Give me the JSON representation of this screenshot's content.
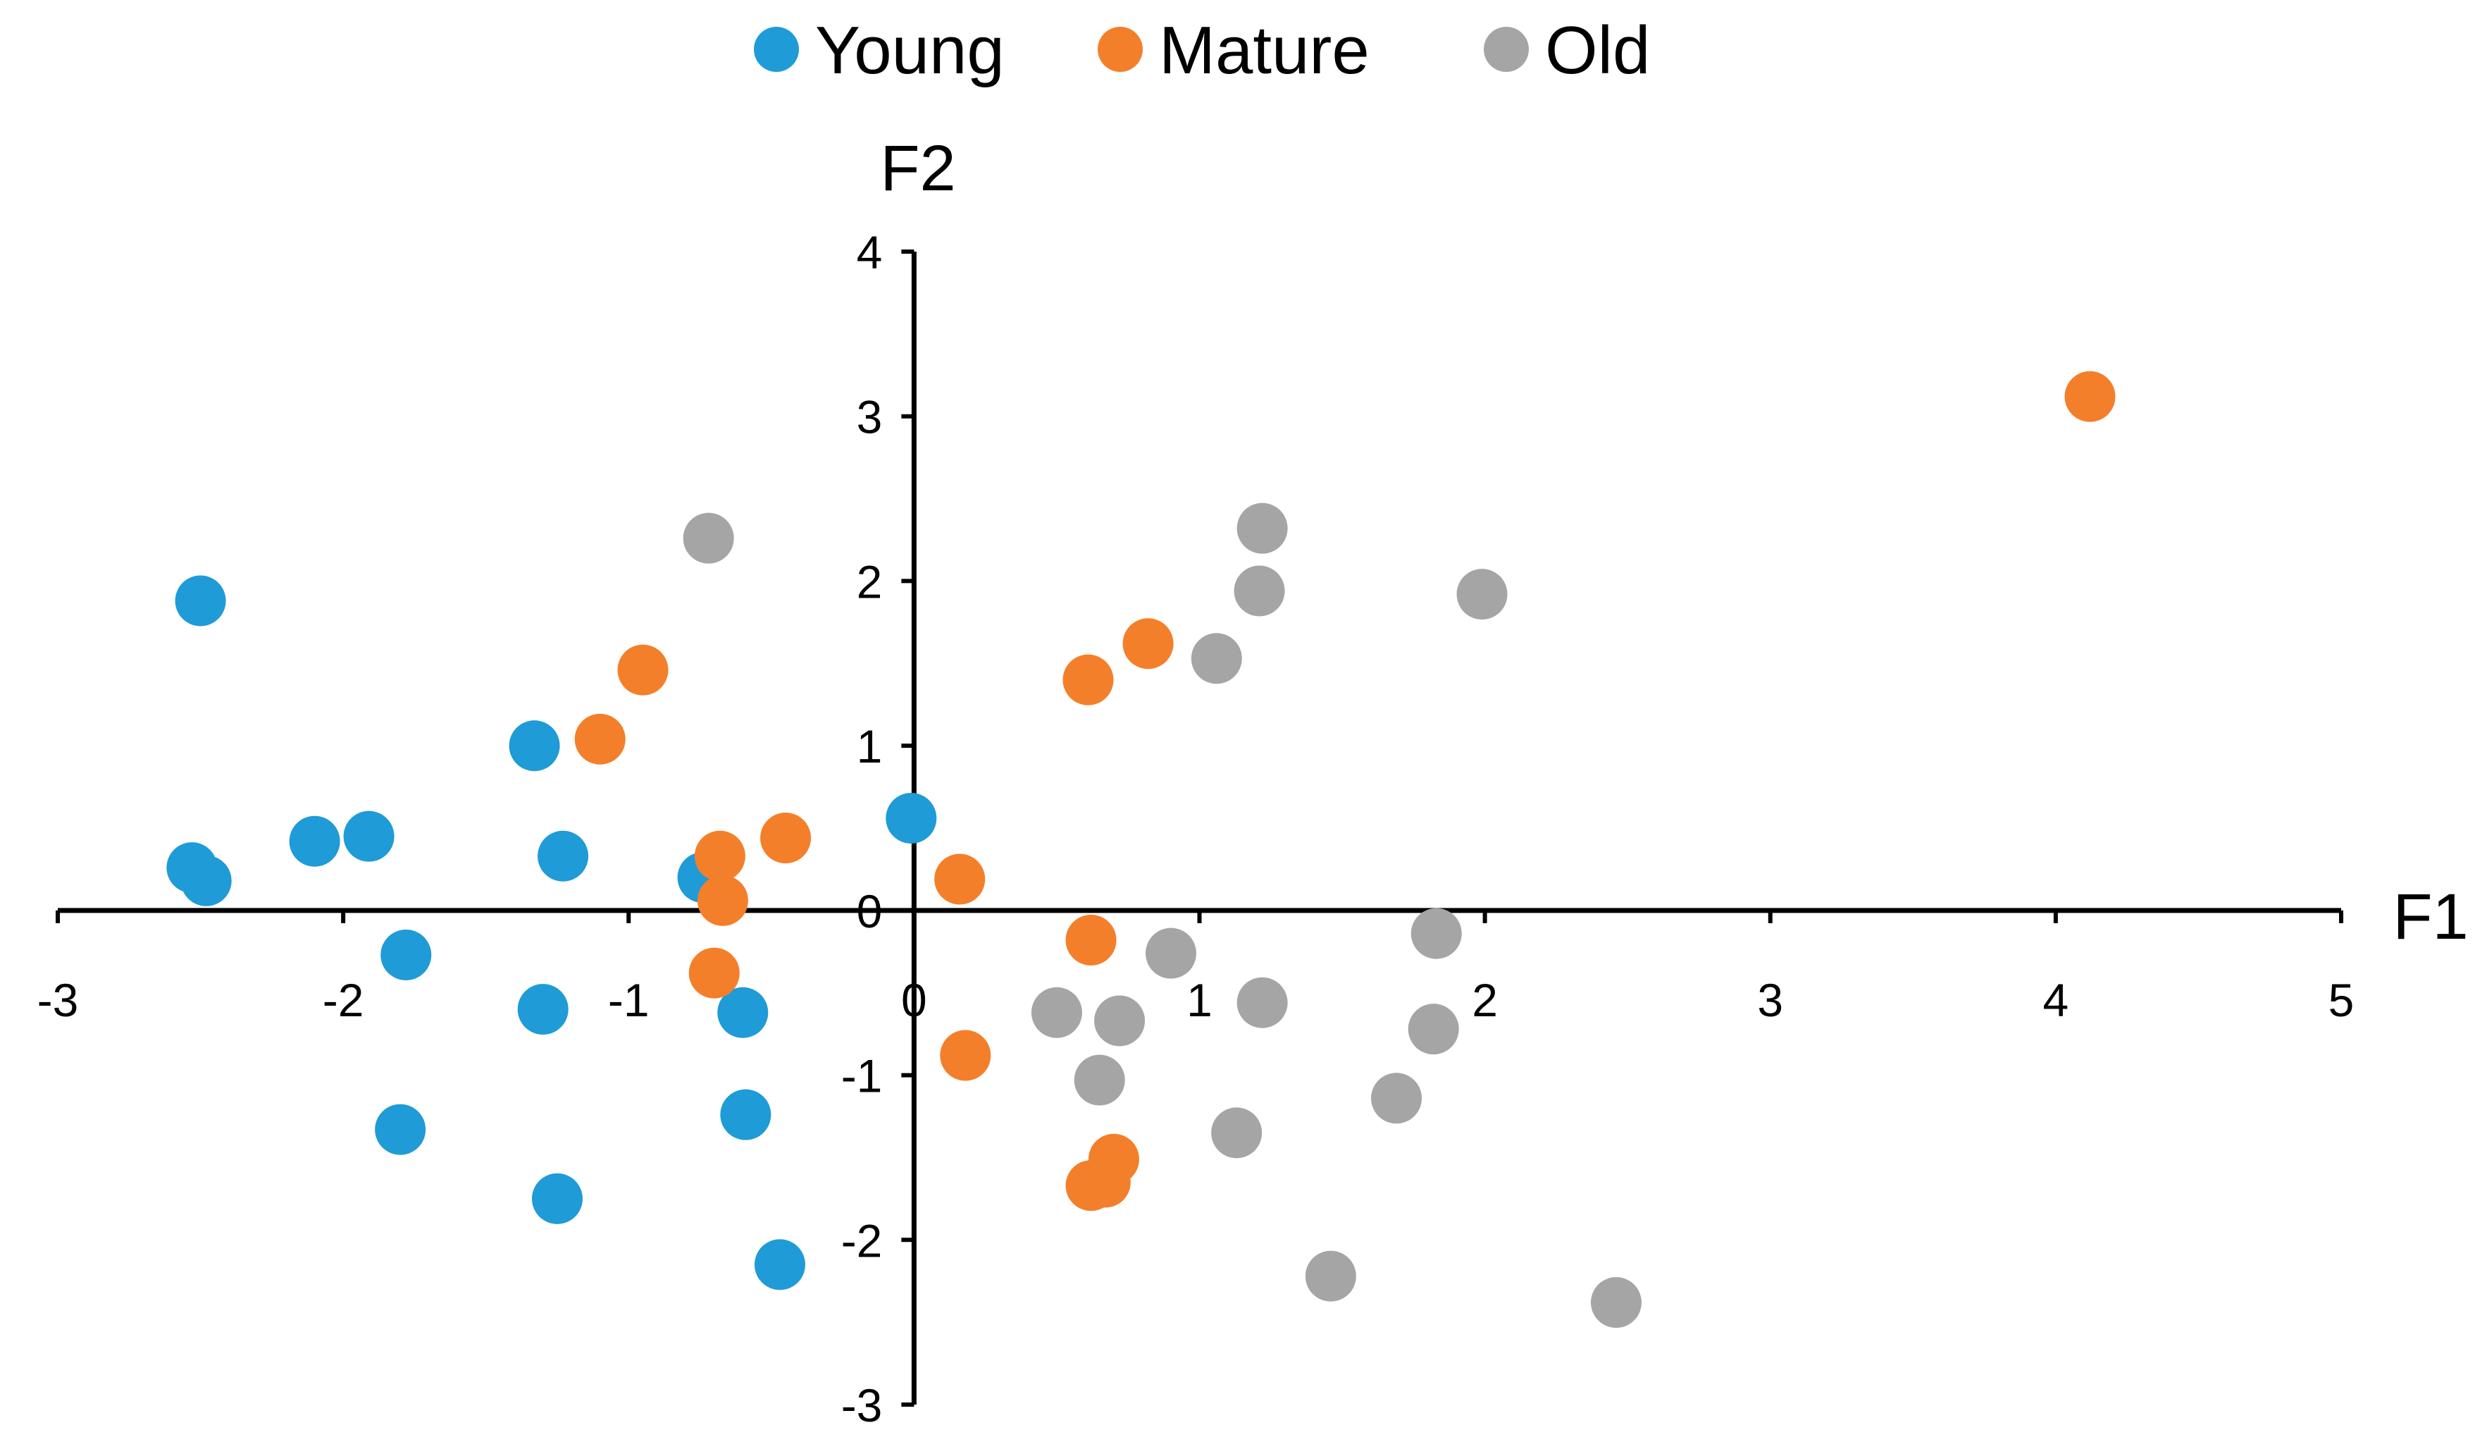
{
  "chart_data": {
    "type": "scatter",
    "xlabel": "F1",
    "ylabel": "F2",
    "xlim": [
      -3,
      5
    ],
    "ylim": [
      -3,
      4
    ],
    "xticks": [
      -3,
      -2,
      -1,
      0,
      1,
      2,
      3,
      4,
      5
    ],
    "yticks": [
      -3,
      -2,
      -1,
      0,
      1,
      2,
      3,
      4
    ],
    "legend": "top-center",
    "grid": false,
    "series": [
      {
        "name": "Young",
        "color": "#1f9bd7",
        "points": [
          [
            -2.5,
            1.88
          ],
          [
            -1.33,
            1.0
          ],
          [
            -2.1,
            0.42
          ],
          [
            -1.91,
            0.45
          ],
          [
            -1.23,
            0.33
          ],
          [
            -2.53,
            0.26
          ],
          [
            -2.48,
            0.18
          ],
          [
            -0.74,
            0.2
          ],
          [
            -0.01,
            0.56
          ],
          [
            -1.78,
            -0.27
          ],
          [
            -1.3,
            -0.6
          ],
          [
            -0.6,
            -0.62
          ],
          [
            -1.8,
            -1.33
          ],
          [
            -0.59,
            -1.24
          ],
          [
            -1.25,
            -1.75
          ],
          [
            -0.47,
            -2.15
          ]
        ]
      },
      {
        "name": "Mature",
        "color": "#f47f2a",
        "points": [
          [
            4.12,
            3.12
          ],
          [
            0.82,
            1.62
          ],
          [
            0.61,
            1.4
          ],
          [
            -0.95,
            1.46
          ],
          [
            -1.1,
            1.04
          ],
          [
            -0.45,
            0.44
          ],
          [
            -0.68,
            0.33
          ],
          [
            -0.67,
            0.06
          ],
          [
            -0.7,
            -0.38
          ],
          [
            0.16,
            0.19
          ],
          [
            0.62,
            -0.18
          ],
          [
            0.18,
            -0.88
          ],
          [
            0.7,
            -1.51
          ],
          [
            0.62,
            -1.67
          ],
          [
            0.67,
            -1.65
          ]
        ]
      },
      {
        "name": "Old",
        "color": "#a5a5a5",
        "points": [
          [
            -0.72,
            2.26
          ],
          [
            1.22,
            2.32
          ],
          [
            1.21,
            1.94
          ],
          [
            1.06,
            1.53
          ],
          [
            1.99,
            1.92
          ],
          [
            1.83,
            -0.14
          ],
          [
            0.9,
            -0.26
          ],
          [
            1.22,
            -0.56
          ],
          [
            0.5,
            -0.62
          ],
          [
            0.72,
            -0.67
          ],
          [
            1.82,
            -0.72
          ],
          [
            0.65,
            -1.03
          ],
          [
            1.69,
            -1.14
          ],
          [
            1.13,
            -1.35
          ],
          [
            1.46,
            -2.22
          ],
          [
            2.46,
            -2.38
          ]
        ]
      }
    ]
  }
}
